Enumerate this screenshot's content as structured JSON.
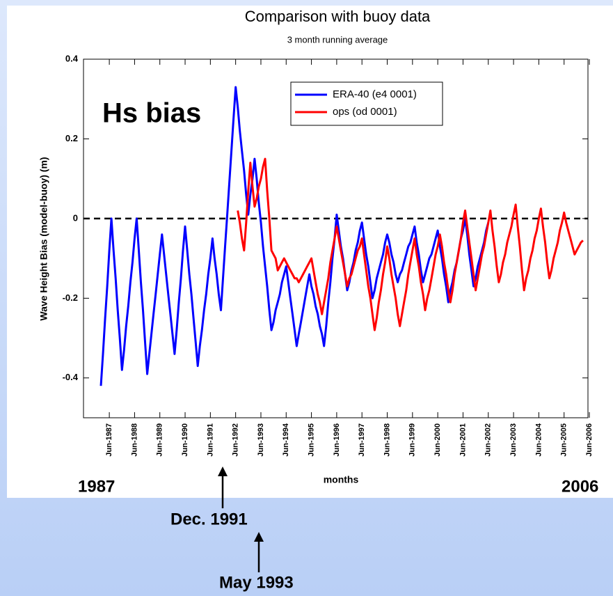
{
  "chart_data": {
    "type": "line",
    "title": "Comparison with buoy data",
    "subtitle": "3 month running average",
    "annotation": "Hs bias",
    "x_label": "months",
    "y_label": "Wave Height Bias (model-buoy) (m)",
    "categories": [
      null,
      null,
      null,
      null,
      "Jun-1987",
      null,
      null,
      null,
      null,
      null,
      null,
      null,
      null,
      null,
      null,
      null,
      "Jun-1988",
      null,
      null,
      null,
      null,
      null,
      null,
      null,
      null,
      null,
      null,
      null,
      "Jun-1989",
      null,
      null,
      null,
      null,
      null,
      null,
      null,
      null,
      null,
      null,
      null,
      "Jun-1990",
      null,
      null,
      null,
      null,
      null,
      null,
      null,
      null,
      null,
      null,
      null,
      "Jun-1991",
      null,
      null,
      null,
      null,
      null,
      null,
      null,
      null,
      null,
      null,
      null,
      "Jun-1992",
      null,
      null,
      null,
      null,
      null,
      null,
      null,
      null,
      null,
      null,
      null,
      "Jun-1993",
      null,
      null,
      null,
      null,
      null,
      null,
      null,
      null,
      null,
      null,
      null,
      "Jun-1994",
      null,
      null,
      null,
      null,
      null,
      null,
      null,
      null,
      null,
      null,
      null,
      "Jun-1995",
      null,
      null,
      null,
      null,
      null,
      null,
      null,
      null,
      null,
      null,
      null,
      "Jun-1996",
      null,
      null,
      null,
      null,
      null,
      null,
      null,
      null,
      null,
      null,
      null,
      "Jun-1997",
      null,
      null,
      null,
      null,
      null,
      null,
      null,
      null,
      null,
      null,
      null,
      "Jun-1998",
      null,
      null,
      null,
      null,
      null,
      null,
      null,
      null,
      null,
      null,
      null,
      "Jun-1999",
      null,
      null,
      null,
      null,
      null,
      null,
      null,
      null,
      null,
      null,
      null,
      "Jun-2000",
      null,
      null,
      null,
      null,
      null,
      null,
      null,
      null,
      null,
      null,
      null,
      "Jun-2001",
      null,
      null,
      null,
      null,
      null,
      null,
      null,
      null,
      null,
      null,
      null,
      "Jun-2002",
      null,
      null,
      null,
      null,
      null,
      null,
      null,
      null,
      null,
      null,
      null,
      "Jun-2003",
      null,
      null,
      null,
      null,
      null,
      null,
      null,
      null,
      null,
      null,
      null,
      "Jun-2004",
      null,
      null,
      null,
      null,
      null,
      null,
      null,
      null,
      null,
      null,
      null,
      "Jun-2005",
      null,
      null,
      null,
      null,
      null,
      null,
      null,
      null,
      null,
      null,
      null,
      "Jun-2006"
    ],
    "series": [
      {
        "name": "ERA-40 (e4 0001)",
        "color": "#0000ff",
        "values": [
          -0.42,
          -0.34,
          -0.25,
          -0.17,
          -0.08,
          0.0,
          -0.08,
          -0.15,
          -0.23,
          -0.3,
          -0.38,
          -0.33,
          -0.27,
          -0.22,
          -0.16,
          -0.11,
          -0.05,
          0.0,
          -0.08,
          -0.16,
          -0.23,
          -0.31,
          -0.39,
          -0.34,
          -0.29,
          -0.24,
          -0.19,
          -0.14,
          -0.09,
          -0.04,
          -0.09,
          -0.14,
          -0.19,
          -0.24,
          -0.29,
          -0.34,
          -0.28,
          -0.21,
          -0.15,
          -0.08,
          -0.02,
          -0.08,
          -0.14,
          -0.19,
          -0.25,
          -0.31,
          -0.37,
          -0.32,
          -0.28,
          -0.23,
          -0.19,
          -0.14,
          -0.1,
          -0.05,
          -0.1,
          -0.14,
          -0.19,
          -0.23,
          -0.15,
          -0.07,
          0.01,
          0.09,
          0.17,
          0.25,
          0.33,
          0.28,
          0.22,
          0.17,
          0.12,
          0.06,
          0.01,
          0.06,
          0.1,
          0.15,
          0.1,
          0.04,
          -0.01,
          -0.07,
          -0.12,
          -0.17,
          -0.23,
          -0.28,
          -0.26,
          -0.23,
          -0.21,
          -0.19,
          -0.16,
          -0.14,
          -0.12,
          -0.16,
          -0.2,
          -0.24,
          -0.28,
          -0.32,
          -0.29,
          -0.26,
          -0.23,
          -0.2,
          -0.17,
          -0.14,
          -0.17,
          -0.19,
          -0.22,
          -0.24,
          -0.27,
          -0.29,
          -0.32,
          -0.27,
          -0.21,
          -0.16,
          -0.1,
          -0.05,
          0.01,
          -0.03,
          -0.07,
          -0.1,
          -0.14,
          -0.18,
          -0.16,
          -0.13,
          -0.11,
          -0.08,
          -0.06,
          -0.03,
          -0.01,
          -0.05,
          -0.09,
          -0.12,
          -0.16,
          -0.2,
          -0.18,
          -0.15,
          -0.13,
          -0.11,
          -0.09,
          -0.06,
          -0.04,
          -0.06,
          -0.09,
          -0.11,
          -0.14,
          -0.16,
          -0.14,
          -0.13,
          -0.11,
          -0.09,
          -0.07,
          -0.06,
          -0.04,
          -0.02,
          -0.06,
          -0.09,
          -0.13,
          -0.16,
          -0.14,
          -0.12,
          -0.1,
          -0.09,
          -0.07,
          -0.05,
          -0.03,
          -0.07,
          -0.1,
          -0.14,
          -0.17,
          -0.21,
          -0.18,
          -0.16,
          -0.13,
          -0.11,
          -0.08,
          -0.05,
          -0.03,
          0.0,
          -0.04,
          -0.09,
          -0.13,
          -0.17,
          -0.15,
          -0.12,
          -0.1,
          -0.08,
          -0.06,
          -0.03,
          -0.01,
          null,
          null,
          null,
          null,
          null,
          null,
          null,
          null,
          null,
          null,
          null,
          null,
          null,
          null,
          null,
          null,
          null,
          null,
          null,
          null,
          null,
          null,
          null,
          null,
          null,
          null,
          null,
          null,
          null,
          null,
          null,
          null,
          null,
          null,
          null,
          null,
          null,
          null,
          null,
          null,
          null,
          null,
          null,
          null,
          null,
          null,
          null,
          null
        ]
      },
      {
        "name": "ops (od 0001)",
        "color": "#ff0000",
        "values": [
          null,
          null,
          null,
          null,
          null,
          null,
          null,
          null,
          null,
          null,
          null,
          null,
          null,
          null,
          null,
          null,
          null,
          null,
          null,
          null,
          null,
          null,
          null,
          null,
          null,
          null,
          null,
          null,
          null,
          null,
          null,
          null,
          null,
          null,
          null,
          null,
          null,
          null,
          null,
          null,
          null,
          null,
          null,
          null,
          null,
          null,
          null,
          null,
          null,
          null,
          null,
          null,
          null,
          null,
          null,
          null,
          null,
          null,
          null,
          null,
          null,
          null,
          null,
          null,
          null,
          0.02,
          -0.01,
          -0.05,
          -0.08,
          -0.01,
          0.07,
          0.14,
          0.08,
          0.03,
          0.05,
          0.08,
          0.1,
          0.13,
          0.15,
          0.07,
          0.0,
          -0.08,
          -0.09,
          -0.1,
          -0.13,
          -0.12,
          -0.11,
          -0.1,
          -0.11,
          -0.12,
          -0.13,
          -0.14,
          -0.15,
          -0.15,
          -0.16,
          -0.15,
          -0.14,
          -0.13,
          -0.12,
          -0.11,
          -0.1,
          -0.13,
          -0.16,
          -0.19,
          -0.21,
          -0.24,
          -0.21,
          -0.18,
          -0.15,
          -0.11,
          -0.08,
          -0.05,
          -0.02,
          -0.05,
          -0.08,
          -0.11,
          -0.14,
          -0.17,
          -0.15,
          -0.14,
          -0.12,
          -0.1,
          -0.08,
          -0.07,
          -0.05,
          -0.09,
          -0.13,
          -0.17,
          -0.2,
          -0.24,
          -0.28,
          -0.25,
          -0.21,
          -0.18,
          -0.14,
          -0.11,
          -0.07,
          -0.1,
          -0.14,
          -0.17,
          -0.2,
          -0.24,
          -0.27,
          -0.24,
          -0.21,
          -0.18,
          -0.14,
          -0.11,
          -0.08,
          -0.05,
          -0.09,
          -0.12,
          -0.16,
          -0.19,
          -0.23,
          -0.2,
          -0.18,
          -0.15,
          -0.12,
          -0.09,
          -0.07,
          -0.04,
          -0.07,
          -0.11,
          -0.14,
          -0.18,
          -0.21,
          -0.18,
          -0.14,
          -0.11,
          -0.08,
          -0.05,
          -0.01,
          0.02,
          -0.02,
          -0.06,
          -0.1,
          -0.14,
          -0.18,
          -0.15,
          -0.12,
          -0.09,
          -0.07,
          -0.04,
          -0.01,
          0.02,
          -0.03,
          -0.07,
          -0.12,
          -0.16,
          -0.14,
          -0.11,
          -0.09,
          -0.06,
          -0.04,
          -0.02,
          0.01,
          0.035,
          -0.02,
          -0.07,
          -0.13,
          -0.18,
          -0.15,
          -0.13,
          -0.1,
          -0.08,
          -0.05,
          -0.03,
          0.0,
          0.025,
          -0.02,
          -0.06,
          -0.11,
          -0.15,
          -0.13,
          -0.1,
          -0.08,
          -0.06,
          -0.03,
          -0.01,
          0.015,
          -0.01,
          -0.03,
          -0.05,
          -0.07,
          -0.09,
          -0.08,
          -0.07,
          -0.06,
          -0.055,
          null,
          null,
          null
        ]
      }
    ],
    "ylim": [
      -0.5,
      0.4
    ],
    "yticks": [
      -0.4,
      -0.2,
      0,
      0.2,
      0.4
    ],
    "reference_line": 0
  },
  "slide": {
    "labels": [
      "1987",
      "2006",
      "Dec. 1991",
      "May 1993"
    ]
  }
}
